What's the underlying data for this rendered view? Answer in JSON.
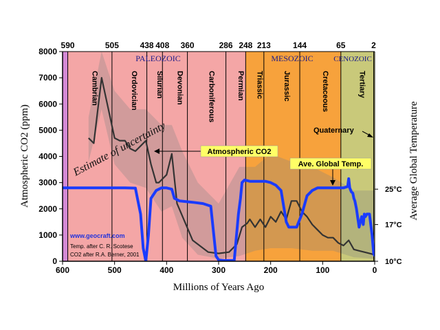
{
  "chart_data": {
    "type": "line",
    "xlabel": "Millions of Years Ago",
    "ylabel_left": "Atmospheric CO2 (ppm)",
    "ylabel_right": "Average Global Temperature",
    "xlim": [
      600,
      0
    ],
    "ylim": [
      0,
      8000
    ],
    "x_ticks": [
      600,
      500,
      400,
      300,
      200,
      100,
      0
    ],
    "y_ticks": [
      0,
      1000,
      2000,
      3000,
      4000,
      5000,
      6000,
      7000,
      8000
    ],
    "top_boundaries": [
      590,
      505,
      438,
      408,
      360,
      286,
      248,
      213,
      144,
      65,
      2
    ],
    "top_labels": [
      "590",
      "505",
      "438",
      "408",
      "360",
      "286",
      "248",
      "213",
      "144",
      "65",
      "2"
    ],
    "temp_ticks": [
      {
        "label": "25°C",
        "value": 25,
        "ppm": 2750
      },
      {
        "label": "17°C",
        "value": 17,
        "ppm": 1400
      },
      {
        "label": "10°C",
        "value": 10,
        "ppm": 0
      }
    ],
    "eras": [
      {
        "name": "PALEOZOIC",
        "start": 590,
        "end": 248,
        "color": "#f4a6a6"
      },
      {
        "name": "MESOZOIC",
        "start": 248,
        "end": 65,
        "color": "#f7a23c"
      },
      {
        "name": "CENOZOIC",
        "start": 65,
        "end": 0,
        "color": "#c9c97a"
      }
    ],
    "cambrian_strip": {
      "start": 600,
      "end": 590,
      "color": "#d58ad6"
    },
    "periods": [
      {
        "name": "Cambrian",
        "start": 590,
        "end": 505
      },
      {
        "name": "Ordovician",
        "start": 505,
        "end": 438
      },
      {
        "name": "Silurian",
        "start": 438,
        "end": 408
      },
      {
        "name": "Devonian",
        "start": 408,
        "end": 360
      },
      {
        "name": "Carboniferous",
        "start": 360,
        "end": 286
      },
      {
        "name": "Permian",
        "start": 286,
        "end": 248
      },
      {
        "name": "Triassic",
        "start": 248,
        "end": 213
      },
      {
        "name": "Jurassic",
        "start": 213,
        "end": 144
      },
      {
        "name": "Cretaceous",
        "start": 144,
        "end": 65
      },
      {
        "name": "Tertiary",
        "start": 65,
        "end": 2
      }
    ],
    "series": [
      {
        "name": "Atmospheric CO2",
        "color": "#333333",
        "x": [
          550,
          540,
          525,
          500,
          490,
          480,
          470,
          460,
          450,
          440,
          430,
          420,
          415,
          400,
          390,
          380,
          350,
          320,
          300,
          280,
          265,
          255,
          245,
          240,
          230,
          220,
          210,
          200,
          190,
          180,
          170,
          160,
          150,
          140,
          130,
          120,
          110,
          100,
          90,
          80,
          70,
          60,
          50,
          40,
          30,
          20,
          10,
          0
        ],
        "y": [
          4700,
          4500,
          7000,
          4700,
          4600,
          4600,
          4300,
          4200,
          4400,
          4600,
          3700,
          3000,
          3000,
          3300,
          4100,
          2200,
          800,
          350,
          300,
          350,
          650,
          1300,
          1450,
          1600,
          1300,
          1600,
          1300,
          1700,
          1500,
          1900,
          1600,
          2300,
          2300,
          1900,
          1700,
          1400,
          1200,
          1000,
          900,
          900,
          700,
          600,
          800,
          450,
          400,
          350,
          300,
          250
        ]
      },
      {
        "name": "Ave. Global Temp.",
        "color": "#1a3bff",
        "x": [
          600,
          580,
          550,
          520,
          480,
          460,
          450,
          445,
          440,
          435,
          430,
          420,
          410,
          400,
          390,
          385,
          375,
          350,
          330,
          315,
          305,
          300,
          290,
          270,
          262,
          258,
          255,
          250,
          240,
          230,
          220,
          210,
          200,
          190,
          180,
          170,
          165,
          160,
          150,
          140,
          130,
          120,
          110,
          100,
          90,
          80,
          70,
          60,
          52,
          50,
          48,
          45,
          42,
          40,
          38,
          35,
          30,
          25,
          22,
          20,
          18,
          15,
          10,
          5,
          2,
          0
        ],
        "y": [
          2800,
          2800,
          2800,
          2800,
          2800,
          2790,
          1800,
          500,
          0,
          1000,
          2400,
          2700,
          2800,
          2800,
          2750,
          2400,
          2300,
          2250,
          2200,
          2100,
          200,
          50,
          30,
          30,
          1800,
          2400,
          3000,
          3100,
          3050,
          3050,
          3050,
          3050,
          3000,
          2900,
          2700,
          1500,
          1300,
          1300,
          1300,
          1800,
          2500,
          2700,
          2800,
          2800,
          2800,
          2800,
          2800,
          2800,
          2850,
          3150,
          2800,
          2650,
          2600,
          2400,
          2300,
          2000,
          1300,
          1700,
          1400,
          1800,
          1700,
          1800,
          1800,
          1000,
          300,
          200
        ]
      }
    ],
    "uncertainty_band": {
      "upper_x": [
        550,
        525,
        500,
        470,
        440,
        410,
        390,
        370,
        340,
        300,
        260,
        230,
        200,
        160,
        120,
        80,
        40,
        0
      ],
      "upper_y": [
        5500,
        8000,
        6500,
        5800,
        5800,
        5200,
        5200,
        4200,
        3000,
        2200,
        3600,
        3600,
        4100,
        3800,
        3600,
        3200,
        2700,
        2700
      ],
      "lower_x": [
        550,
        525,
        500,
        470,
        440,
        410,
        390,
        370,
        340,
        300,
        260,
        230,
        200,
        160,
        120,
        80,
        40,
        0
      ],
      "lower_y": [
        3800,
        5800,
        3700,
        3000,
        2800,
        1900,
        2100,
        900,
        250,
        100,
        200,
        400,
        500,
        500,
        400,
        400,
        150,
        100
      ]
    },
    "annotations": {
      "estimate": "Estimate of uncertainty",
      "co2_label": "Atmospheric CO2",
      "temp_label": "Ave. Global Temp.",
      "quaternary": "Quaternary",
      "website": "www.geocraft.com",
      "credit1": "Temp. after C. R. Scotese",
      "credit2": "CO2 after R.A. Berner, 2001"
    }
  }
}
